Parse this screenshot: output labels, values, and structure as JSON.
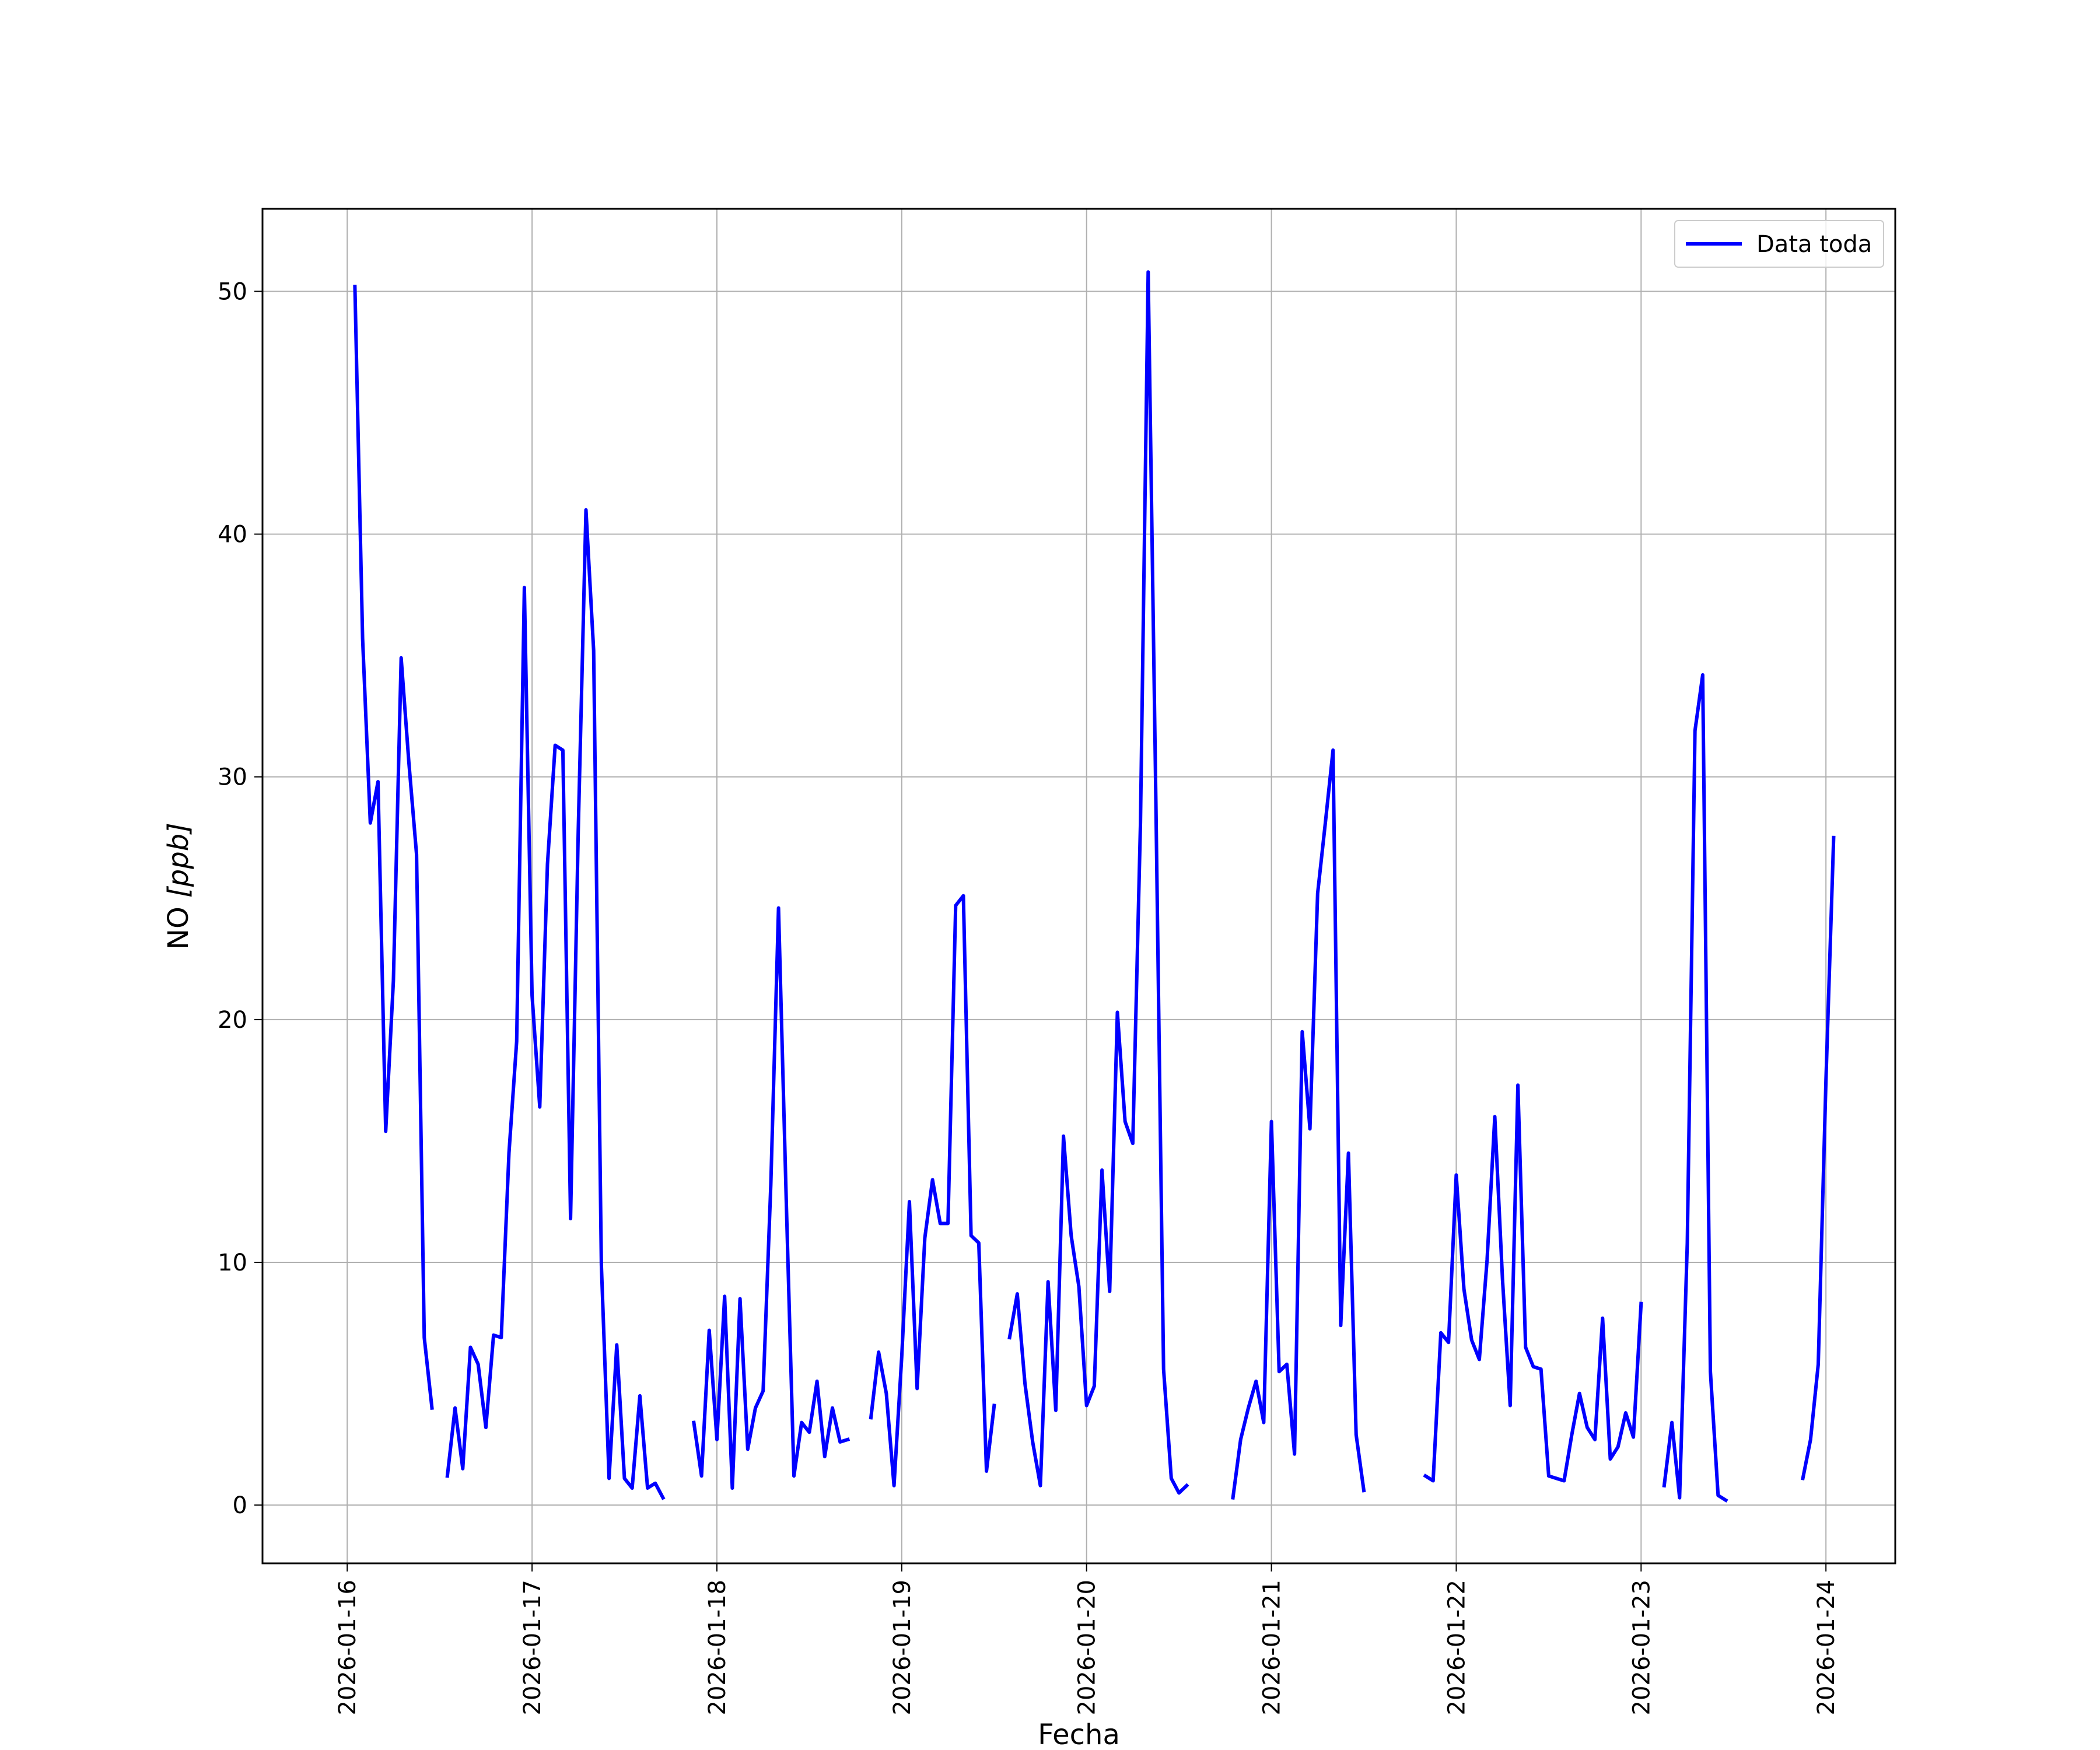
{
  "chart_data": {
    "type": "line",
    "title": "",
    "xlabel": "Fecha",
    "ylabel": "NO [ppb]",
    "ylabel_parts": {
      "main": "NO ",
      "unit": "[ppb]"
    },
    "x_ticks": [
      "2026-01-16",
      "2026-01-17",
      "2026-01-18",
      "2026-01-19",
      "2026-01-20",
      "2026-01-21",
      "2026-01-22",
      "2026-01-23",
      "2026-01-24"
    ],
    "y_ticks": [
      0,
      10,
      20,
      30,
      40,
      50
    ],
    "y_tick_labels": [
      "0",
      "10",
      "20",
      "30",
      "40",
      "50"
    ],
    "xlim": [
      "2026-01-15 13:00",
      "2026-01-24 09:00"
    ],
    "ylim": [
      -2.4,
      53.4
    ],
    "grid": true,
    "legend_position": "upper right",
    "colors": {
      "series": "#0000ff",
      "grid": "#b0b0b0",
      "axes": "#000000"
    },
    "series": [
      {
        "name": "Data toda",
        "segments": [
          [
            [
              "2026-01-16 01:00",
              50.2
            ],
            [
              "2026-01-16 02:00",
              35.7
            ],
            [
              "2026-01-16 03:00",
              28.1
            ],
            [
              "2026-01-16 04:00",
              29.8
            ],
            [
              "2026-01-16 05:00",
              15.4
            ],
            [
              "2026-01-16 06:00",
              21.6
            ],
            [
              "2026-01-16 07:00",
              34.9
            ],
            [
              "2026-01-16 08:00",
              30.6
            ],
            [
              "2026-01-16 09:00",
              26.8
            ],
            [
              "2026-01-16 10:00",
              6.9
            ],
            [
              "2026-01-16 11:00",
              4.0
            ]
          ],
          [
            [
              "2026-01-16 13:00",
              1.2
            ],
            [
              "2026-01-16 14:00",
              4.0
            ],
            [
              "2026-01-16 15:00",
              1.5
            ],
            [
              "2026-01-16 16:00",
              6.5
            ],
            [
              "2026-01-16 17:00",
              5.8
            ],
            [
              "2026-01-16 18:00",
              3.2
            ],
            [
              "2026-01-16 19:00",
              7.0
            ],
            [
              "2026-01-16 20:00",
              6.9
            ],
            [
              "2026-01-16 21:00",
              14.5
            ],
            [
              "2026-01-16 22:00",
              19.1
            ],
            [
              "2026-01-16 23:00",
              37.8
            ],
            [
              "2026-01-17 00:00",
              21.0
            ],
            [
              "2026-01-17 01:00",
              16.4
            ],
            [
              "2026-01-17 02:00",
              26.4
            ],
            [
              "2026-01-17 03:00",
              31.3
            ],
            [
              "2026-01-17 04:00",
              31.1
            ],
            [
              "2026-01-17 05:00",
              11.8
            ],
            [
              "2026-01-17 06:00",
              27.8
            ],
            [
              "2026-01-17 07:00",
              41.0
            ],
            [
              "2026-01-17 08:00",
              35.2
            ],
            [
              "2026-01-17 09:00",
              9.9
            ],
            [
              "2026-01-17 10:00",
              1.1
            ],
            [
              "2026-01-17 11:00",
              6.6
            ],
            [
              "2026-01-17 12:00",
              1.1
            ],
            [
              "2026-01-17 13:00",
              0.7
            ],
            [
              "2026-01-17 14:00",
              4.5
            ],
            [
              "2026-01-17 15:00",
              0.7
            ],
            [
              "2026-01-17 16:00",
              0.9
            ],
            [
              "2026-01-17 17:00",
              0.3
            ]
          ],
          [
            [
              "2026-01-17 21:00",
              3.4
            ],
            [
              "2026-01-17 22:00",
              1.2
            ],
            [
              "2026-01-17 23:00",
              7.2
            ],
            [
              "2026-01-18 00:00",
              2.7
            ],
            [
              "2026-01-18 01:00",
              8.6
            ],
            [
              "2026-01-18 02:00",
              0.7
            ],
            [
              "2026-01-18 03:00",
              8.5
            ],
            [
              "2026-01-18 04:00",
              2.3
            ],
            [
              "2026-01-18 05:00",
              4.0
            ],
            [
              "2026-01-18 06:00",
              4.7
            ],
            [
              "2026-01-18 07:00",
              13.2
            ],
            [
              "2026-01-18 08:00",
              24.6
            ],
            [
              "2026-01-18 09:00",
              12.6
            ],
            [
              "2026-01-18 10:00",
              1.2
            ],
            [
              "2026-01-18 11:00",
              3.4
            ],
            [
              "2026-01-18 12:00",
              3.0
            ],
            [
              "2026-01-18 13:00",
              5.1
            ],
            [
              "2026-01-18 14:00",
              2.0
            ],
            [
              "2026-01-18 15:00",
              4.0
            ],
            [
              "2026-01-18 16:00",
              2.6
            ],
            [
              "2026-01-18 17:00",
              2.7
            ]
          ],
          [
            [
              "2026-01-18 20:00",
              3.6
            ],
            [
              "2026-01-18 21:00",
              6.3
            ],
            [
              "2026-01-18 22:00",
              4.6
            ],
            [
              "2026-01-18 23:00",
              0.8
            ],
            [
              "2026-01-19 00:00",
              6.1
            ],
            [
              "2026-01-19 01:00",
              12.5
            ],
            [
              "2026-01-19 02:00",
              4.8
            ],
            [
              "2026-01-19 03:00",
              11.0
            ],
            [
              "2026-01-19 04:00",
              13.4
            ],
            [
              "2026-01-19 05:00",
              11.6
            ],
            [
              "2026-01-19 06:00",
              11.6
            ],
            [
              "2026-01-19 07:00",
              24.7
            ],
            [
              "2026-01-19 08:00",
              25.1
            ],
            [
              "2026-01-19 09:00",
              11.1
            ],
            [
              "2026-01-19 10:00",
              10.8
            ],
            [
              "2026-01-19 11:00",
              1.4
            ],
            [
              "2026-01-19 12:00",
              4.1
            ]
          ],
          [
            [
              "2026-01-19 14:00",
              6.9
            ],
            [
              "2026-01-19 15:00",
              8.7
            ],
            [
              "2026-01-19 16:00",
              5.0
            ],
            [
              "2026-01-19 17:00",
              2.6
            ],
            [
              "2026-01-19 18:00",
              0.8
            ],
            [
              "2026-01-19 19:00",
              9.2
            ],
            [
              "2026-01-19 20:00",
              3.9
            ],
            [
              "2026-01-19 21:00",
              15.2
            ],
            [
              "2026-01-19 22:00",
              11.1
            ],
            [
              "2026-01-19 23:00",
              9.0
            ],
            [
              "2026-01-20 00:00",
              4.1
            ],
            [
              "2026-01-20 01:00",
              4.9
            ],
            [
              "2026-01-20 02:00",
              13.8
            ],
            [
              "2026-01-20 03:00",
              8.8
            ],
            [
              "2026-01-20 04:00",
              20.3
            ],
            [
              "2026-01-20 05:00",
              15.8
            ],
            [
              "2026-01-20 06:00",
              14.9
            ],
            [
              "2026-01-20 07:00",
              28.1
            ],
            [
              "2026-01-20 08:00",
              50.8
            ],
            [
              "2026-01-20 09:00",
              29.0
            ],
            [
              "2026-01-20 10:00",
              5.6
            ],
            [
              "2026-01-20 11:00",
              1.1
            ],
            [
              "2026-01-20 12:00",
              0.5
            ],
            [
              "2026-01-20 13:00",
              0.8
            ]
          ],
          [
            [
              "2026-01-20 19:00",
              0.3
            ],
            [
              "2026-01-20 20:00",
              2.7
            ],
            [
              "2026-01-20 21:00",
              4.0
            ],
            [
              "2026-01-20 22:00",
              5.1
            ],
            [
              "2026-01-20 23:00",
              3.4
            ],
            [
              "2026-01-21 00:00",
              15.8
            ],
            [
              "2026-01-21 01:00",
              5.5
            ],
            [
              "2026-01-21 02:00",
              5.8
            ],
            [
              "2026-01-21 03:00",
              2.1
            ],
            [
              "2026-01-21 04:00",
              19.5
            ],
            [
              "2026-01-21 05:00",
              15.5
            ],
            [
              "2026-01-21 06:00",
              25.2
            ],
            [
              "2026-01-21 07:00",
              28.1
            ],
            [
              "2026-01-21 08:00",
              31.1
            ],
            [
              "2026-01-21 09:00",
              7.4
            ],
            [
              "2026-01-21 10:00",
              14.5
            ],
            [
              "2026-01-21 11:00",
              2.9
            ],
            [
              "2026-01-21 12:00",
              0.6
            ]
          ],
          [
            [
              "2026-01-21 20:00",
              1.2
            ],
            [
              "2026-01-21 21:00",
              1.0
            ],
            [
              "2026-01-21 22:00",
              7.1
            ],
            [
              "2026-01-21 23:00",
              6.7
            ],
            [
              "2026-01-22 00:00",
              13.6
            ],
            [
              "2026-01-22 01:00",
              8.9
            ],
            [
              "2026-01-22 02:00",
              6.8
            ],
            [
              "2026-01-22 03:00",
              6.0
            ],
            [
              "2026-01-22 04:00",
              10.1
            ],
            [
              "2026-01-22 05:00",
              16.0
            ],
            [
              "2026-01-22 06:00",
              9.3
            ],
            [
              "2026-01-22 07:00",
              4.1
            ],
            [
              "2026-01-22 08:00",
              17.3
            ],
            [
              "2026-01-22 09:00",
              6.5
            ],
            [
              "2026-01-22 10:00",
              5.7
            ],
            [
              "2026-01-22 11:00",
              5.6
            ],
            [
              "2026-01-22 12:00",
              1.2
            ],
            [
              "2026-01-22 13:00",
              1.1
            ],
            [
              "2026-01-22 14:00",
              1.0
            ],
            [
              "2026-01-22 15:00",
              2.9
            ],
            [
              "2026-01-22 16:00",
              4.6
            ],
            [
              "2026-01-22 17:00",
              3.2
            ],
            [
              "2026-01-22 18:00",
              2.7
            ],
            [
              "2026-01-22 19:00",
              7.7
            ],
            [
              "2026-01-22 20:00",
              1.9
            ],
            [
              "2026-01-22 21:00",
              2.4
            ],
            [
              "2026-01-22 22:00",
              3.8
            ],
            [
              "2026-01-22 23:00",
              2.8
            ],
            [
              "2026-01-23 00:00",
              8.3
            ]
          ],
          [
            [
              "2026-01-23 03:00",
              0.8
            ],
            [
              "2026-01-23 04:00",
              3.4
            ],
            [
              "2026-01-23 05:00",
              0.3
            ],
            [
              "2026-01-23 06:00",
              10.8
            ],
            [
              "2026-01-23 07:00",
              31.9
            ],
            [
              "2026-01-23 08:00",
              34.2
            ],
            [
              "2026-01-23 09:00",
              5.5
            ],
            [
              "2026-01-23 10:00",
              0.4
            ],
            [
              "2026-01-23 11:00",
              0.2
            ]
          ],
          [
            [
              "2026-01-23 21:00",
              1.1
            ],
            [
              "2026-01-23 22:00",
              2.7
            ],
            [
              "2026-01-23 23:00",
              5.8
            ],
            [
              "2026-01-24 00:00",
              17.5
            ],
            [
              "2026-01-24 01:00",
              27.5
            ]
          ]
        ]
      }
    ]
  }
}
